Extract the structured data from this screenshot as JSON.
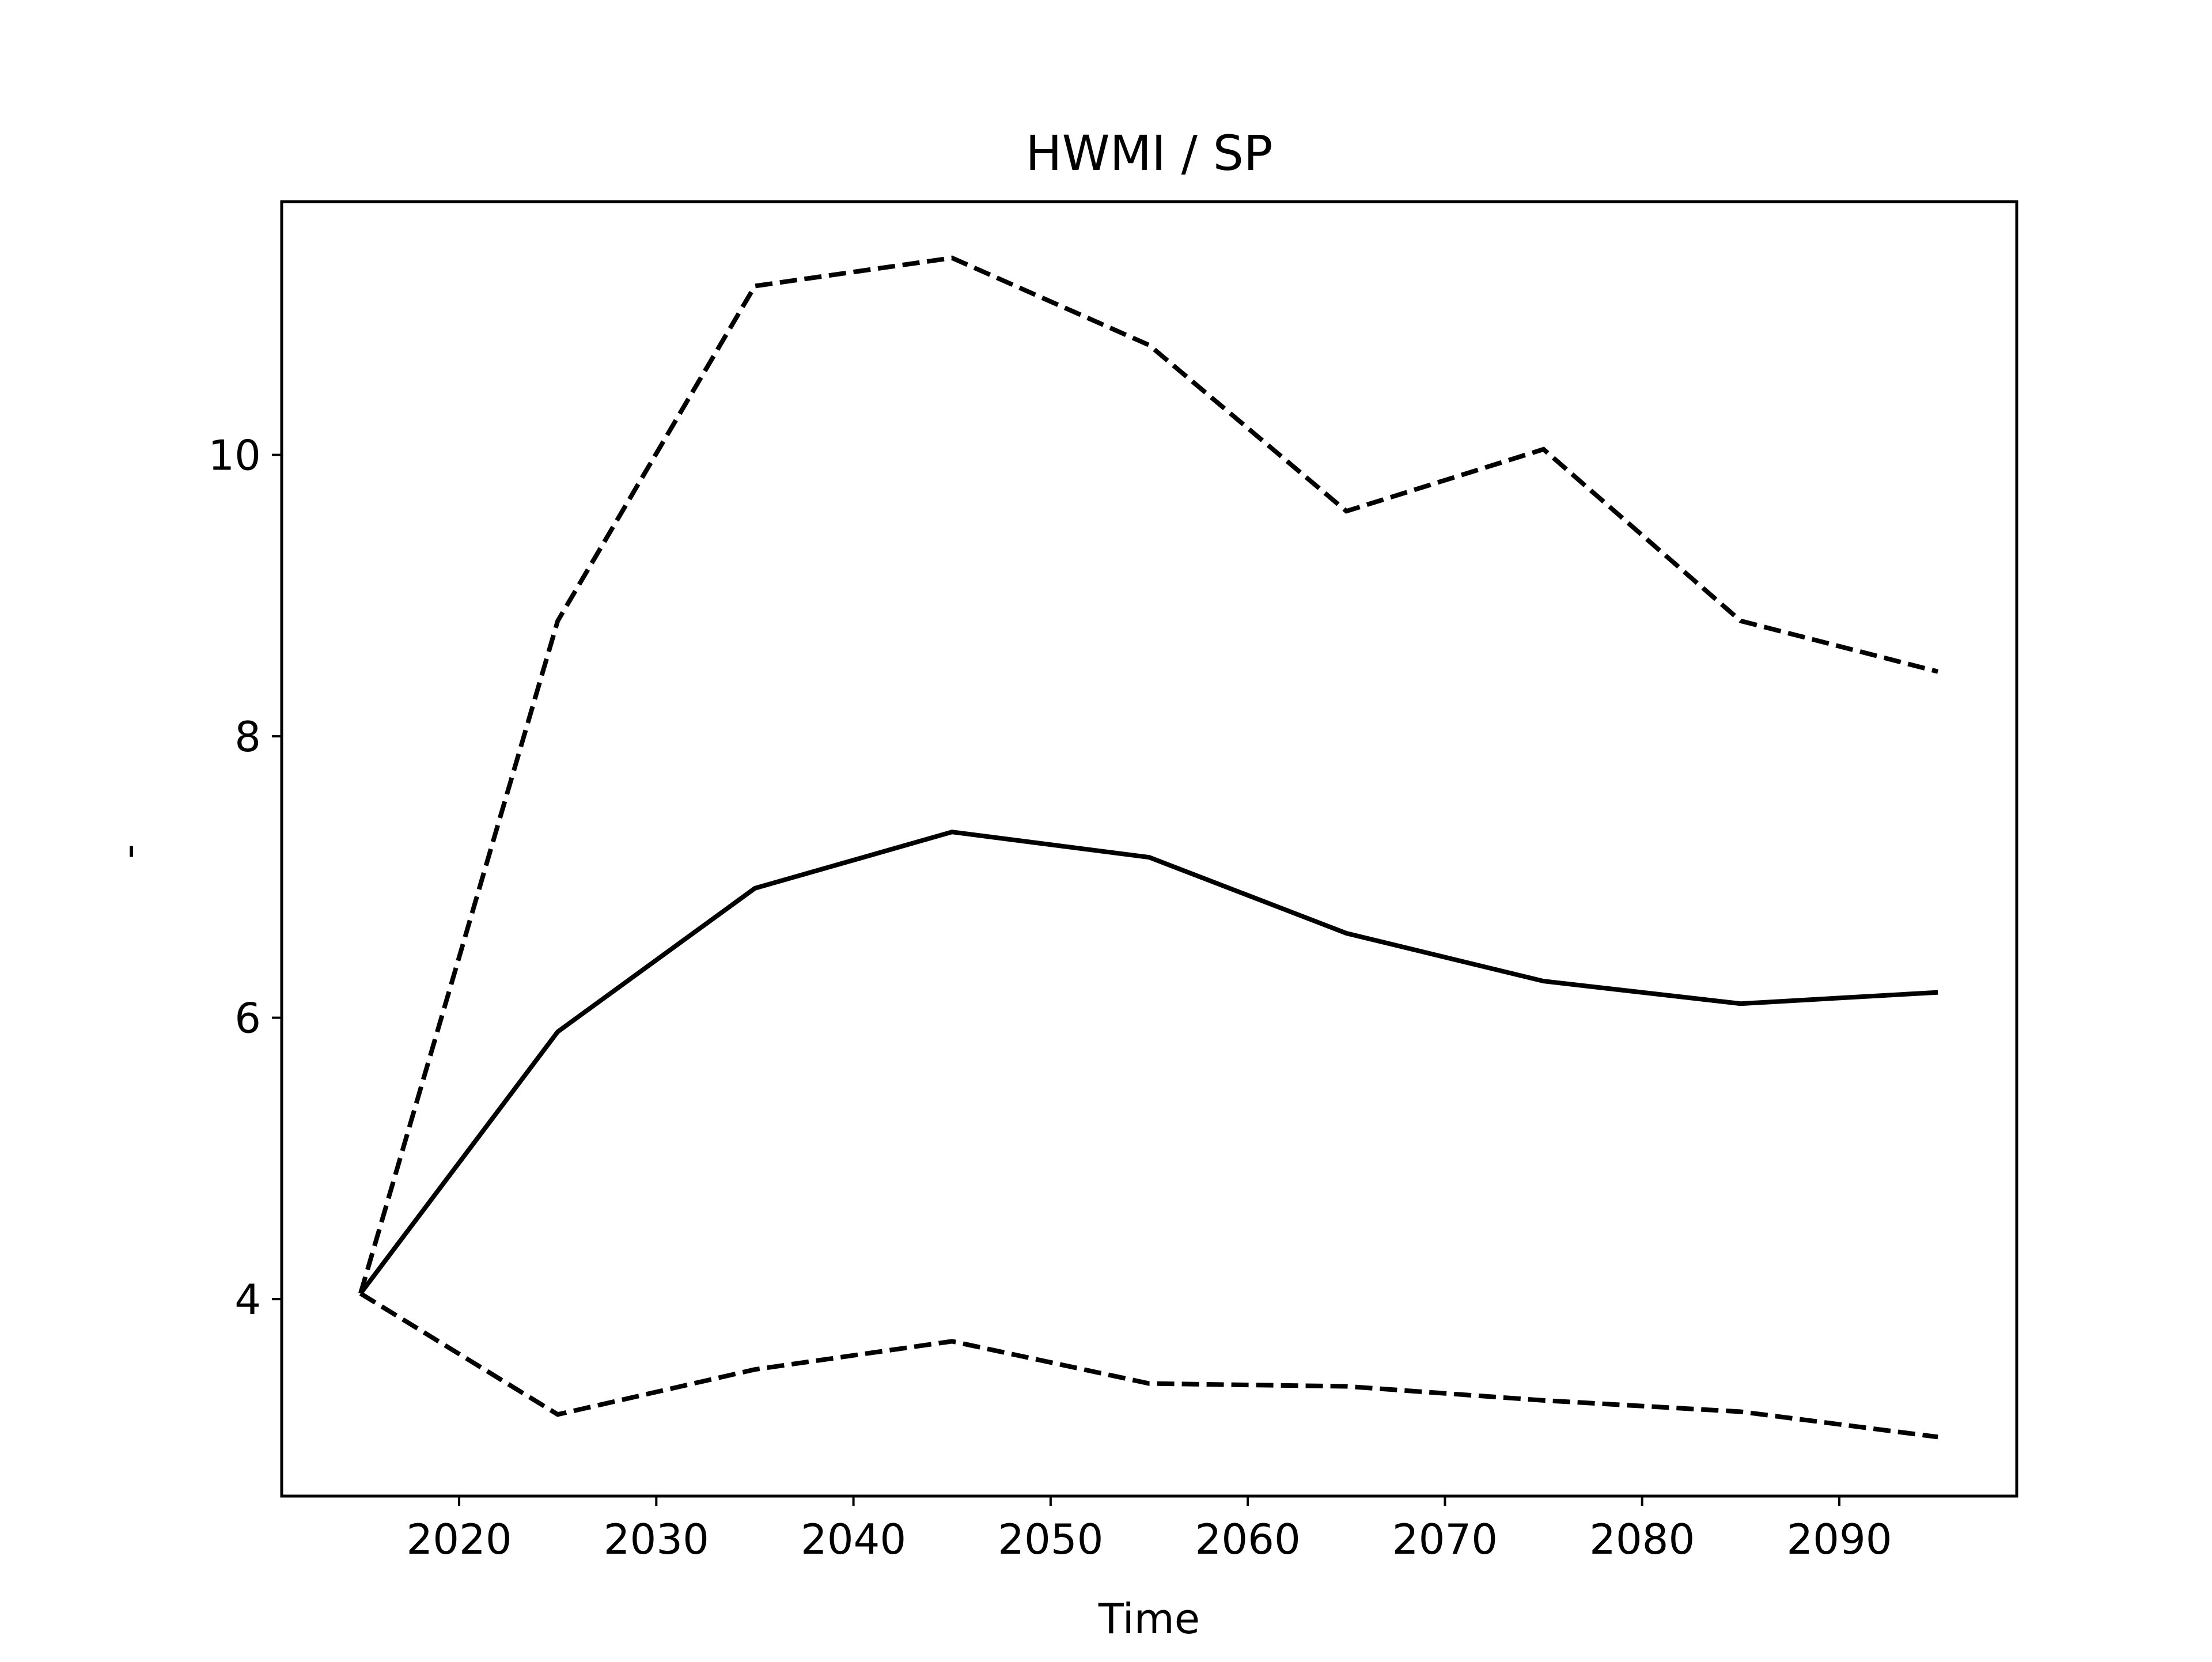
{
  "chart_data": {
    "type": "line",
    "title": "HWMI / SP",
    "xlabel": "Time",
    "ylabel": "-",
    "xlim": [
      2011,
      2099
    ],
    "ylim": [
      2.6,
      11.8
    ],
    "grid": false,
    "legend": "none",
    "xticks": [
      2020,
      2030,
      2040,
      2050,
      2060,
      2070,
      2080,
      2090
    ],
    "yticks": [
      4,
      6,
      8,
      10
    ],
    "x": [
      2015,
      2025,
      2035,
      2045,
      2055,
      2065,
      2075,
      2085,
      2095
    ],
    "series": [
      {
        "style": "solid",
        "color": "#000000",
        "values": [
          4.04,
          5.9,
          6.92,
          7.32,
          7.14,
          6.6,
          6.26,
          6.1,
          6.18
        ]
      },
      {
        "style": "dashed",
        "color": "#000000",
        "values": [
          4.04,
          8.82,
          11.2,
          11.4,
          10.78,
          9.6,
          10.04,
          8.82,
          8.46
        ]
      },
      {
        "style": "dashed",
        "color": "#000000",
        "values": [
          4.04,
          3.18,
          3.5,
          3.7,
          3.4,
          3.38,
          3.28,
          3.2,
          3.02
        ]
      }
    ]
  }
}
